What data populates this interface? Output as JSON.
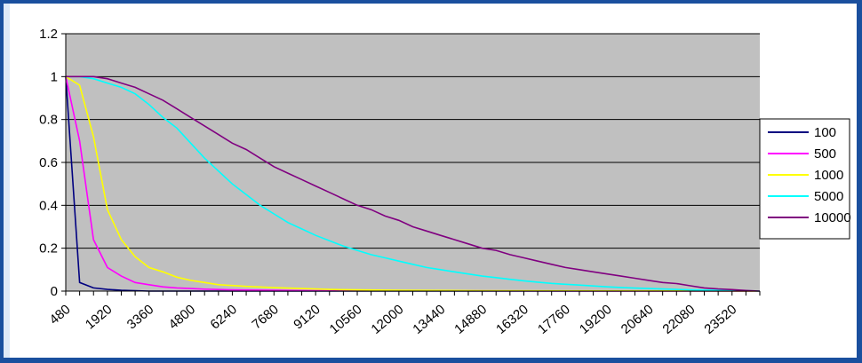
{
  "chart_data": {
    "type": "line",
    "title": "",
    "xlabel": "",
    "ylabel": "",
    "ylim": [
      0,
      1.2
    ],
    "yticks": [
      "0",
      "0.2",
      "0.4",
      "0.6",
      "0.8",
      "1",
      "1.2"
    ],
    "x_tick_labels": [
      "480",
      "1920",
      "3360",
      "4800",
      "6240",
      "7680",
      "9120",
      "10560",
      "12000",
      "13440",
      "14880",
      "16320",
      "17760",
      "19200",
      "20640",
      "22080",
      "23520"
    ],
    "xlim": [
      480,
      24480
    ],
    "grid": "horizontal",
    "plot_background": "#c0c0c0",
    "legend_position": "right",
    "series": [
      {
        "name": "100",
        "color": "#000080",
        "x": [
          480,
          960,
          1440,
          1920,
          2400,
          3360,
          24480
        ],
        "y": [
          1.0,
          0.04,
          0.015,
          0.008,
          0.004,
          0.0,
          0.0
        ]
      },
      {
        "name": "500",
        "color": "#ff00ff",
        "x": [
          480,
          960,
          1440,
          1920,
          2400,
          2880,
          3360,
          3840,
          4320,
          4800,
          5280,
          6240,
          7680,
          9120,
          24480
        ],
        "y": [
          1.0,
          0.7,
          0.24,
          0.11,
          0.07,
          0.04,
          0.03,
          0.02,
          0.015,
          0.012,
          0.009,
          0.006,
          0.004,
          0.002,
          0.0
        ]
      },
      {
        "name": "1000",
        "color": "#ffff00",
        "x": [
          480,
          960,
          1440,
          1920,
          2400,
          2880,
          3360,
          3840,
          4320,
          4800,
          5280,
          5760,
          6240,
          6720,
          7680,
          8640,
          9600,
          10560,
          12000,
          14880,
          24480
        ],
        "y": [
          1.0,
          0.96,
          0.72,
          0.38,
          0.24,
          0.16,
          0.11,
          0.09,
          0.065,
          0.05,
          0.04,
          0.03,
          0.026,
          0.022,
          0.016,
          0.012,
          0.008,
          0.006,
          0.004,
          0.002,
          0.0
        ]
      },
      {
        "name": "5000",
        "color": "#00ffff",
        "x": [
          480,
          960,
          1440,
          1920,
          2400,
          2880,
          3360,
          3840,
          4320,
          4800,
          5280,
          5760,
          6240,
          6720,
          7200,
          7680,
          8160,
          8640,
          9120,
          9600,
          10080,
          10560,
          11040,
          11520,
          12000,
          12480,
          12960,
          13440,
          13920,
          14400,
          14880,
          15360,
          15840,
          16320,
          16800,
          17280,
          17760,
          18240,
          18720,
          19200,
          19680,
          20160,
          20640,
          21120,
          21600,
          22080,
          22560,
          23040,
          23520,
          24000,
          24480
        ],
        "y": [
          1.0,
          1.0,
          0.99,
          0.97,
          0.95,
          0.92,
          0.87,
          0.81,
          0.76,
          0.69,
          0.62,
          0.56,
          0.5,
          0.45,
          0.4,
          0.36,
          0.32,
          0.29,
          0.26,
          0.235,
          0.21,
          0.19,
          0.17,
          0.155,
          0.14,
          0.125,
          0.11,
          0.1,
          0.09,
          0.08,
          0.07,
          0.063,
          0.055,
          0.048,
          0.042,
          0.036,
          0.032,
          0.028,
          0.024,
          0.02,
          0.017,
          0.014,
          0.012,
          0.01,
          0.008,
          0.006,
          0.005,
          0.004,
          0.003,
          0.002,
          0.0
        ]
      },
      {
        "name": "10000",
        "color": "#800080",
        "x": [
          480,
          960,
          1440,
          1920,
          2400,
          2880,
          3360,
          3840,
          4320,
          4800,
          5280,
          5760,
          6240,
          6720,
          7200,
          7680,
          8160,
          8640,
          9120,
          9600,
          10080,
          10560,
          11040,
          11520,
          12000,
          12480,
          12960,
          13440,
          13920,
          14400,
          14880,
          15360,
          15840,
          16320,
          16800,
          17280,
          17760,
          18240,
          18720,
          19200,
          19680,
          20160,
          20640,
          21120,
          21600,
          22080,
          22560,
          23040,
          23520,
          24000,
          24480
        ],
        "y": [
          1.0,
          1.0,
          1.0,
          0.99,
          0.97,
          0.95,
          0.92,
          0.89,
          0.85,
          0.81,
          0.77,
          0.73,
          0.69,
          0.66,
          0.62,
          0.58,
          0.55,
          0.52,
          0.49,
          0.46,
          0.43,
          0.4,
          0.38,
          0.35,
          0.33,
          0.3,
          0.28,
          0.26,
          0.24,
          0.22,
          0.2,
          0.19,
          0.17,
          0.155,
          0.14,
          0.125,
          0.11,
          0.1,
          0.09,
          0.08,
          0.07,
          0.06,
          0.05,
          0.04,
          0.035,
          0.025,
          0.015,
          0.01,
          0.007,
          0.003,
          0.0
        ]
      }
    ]
  }
}
